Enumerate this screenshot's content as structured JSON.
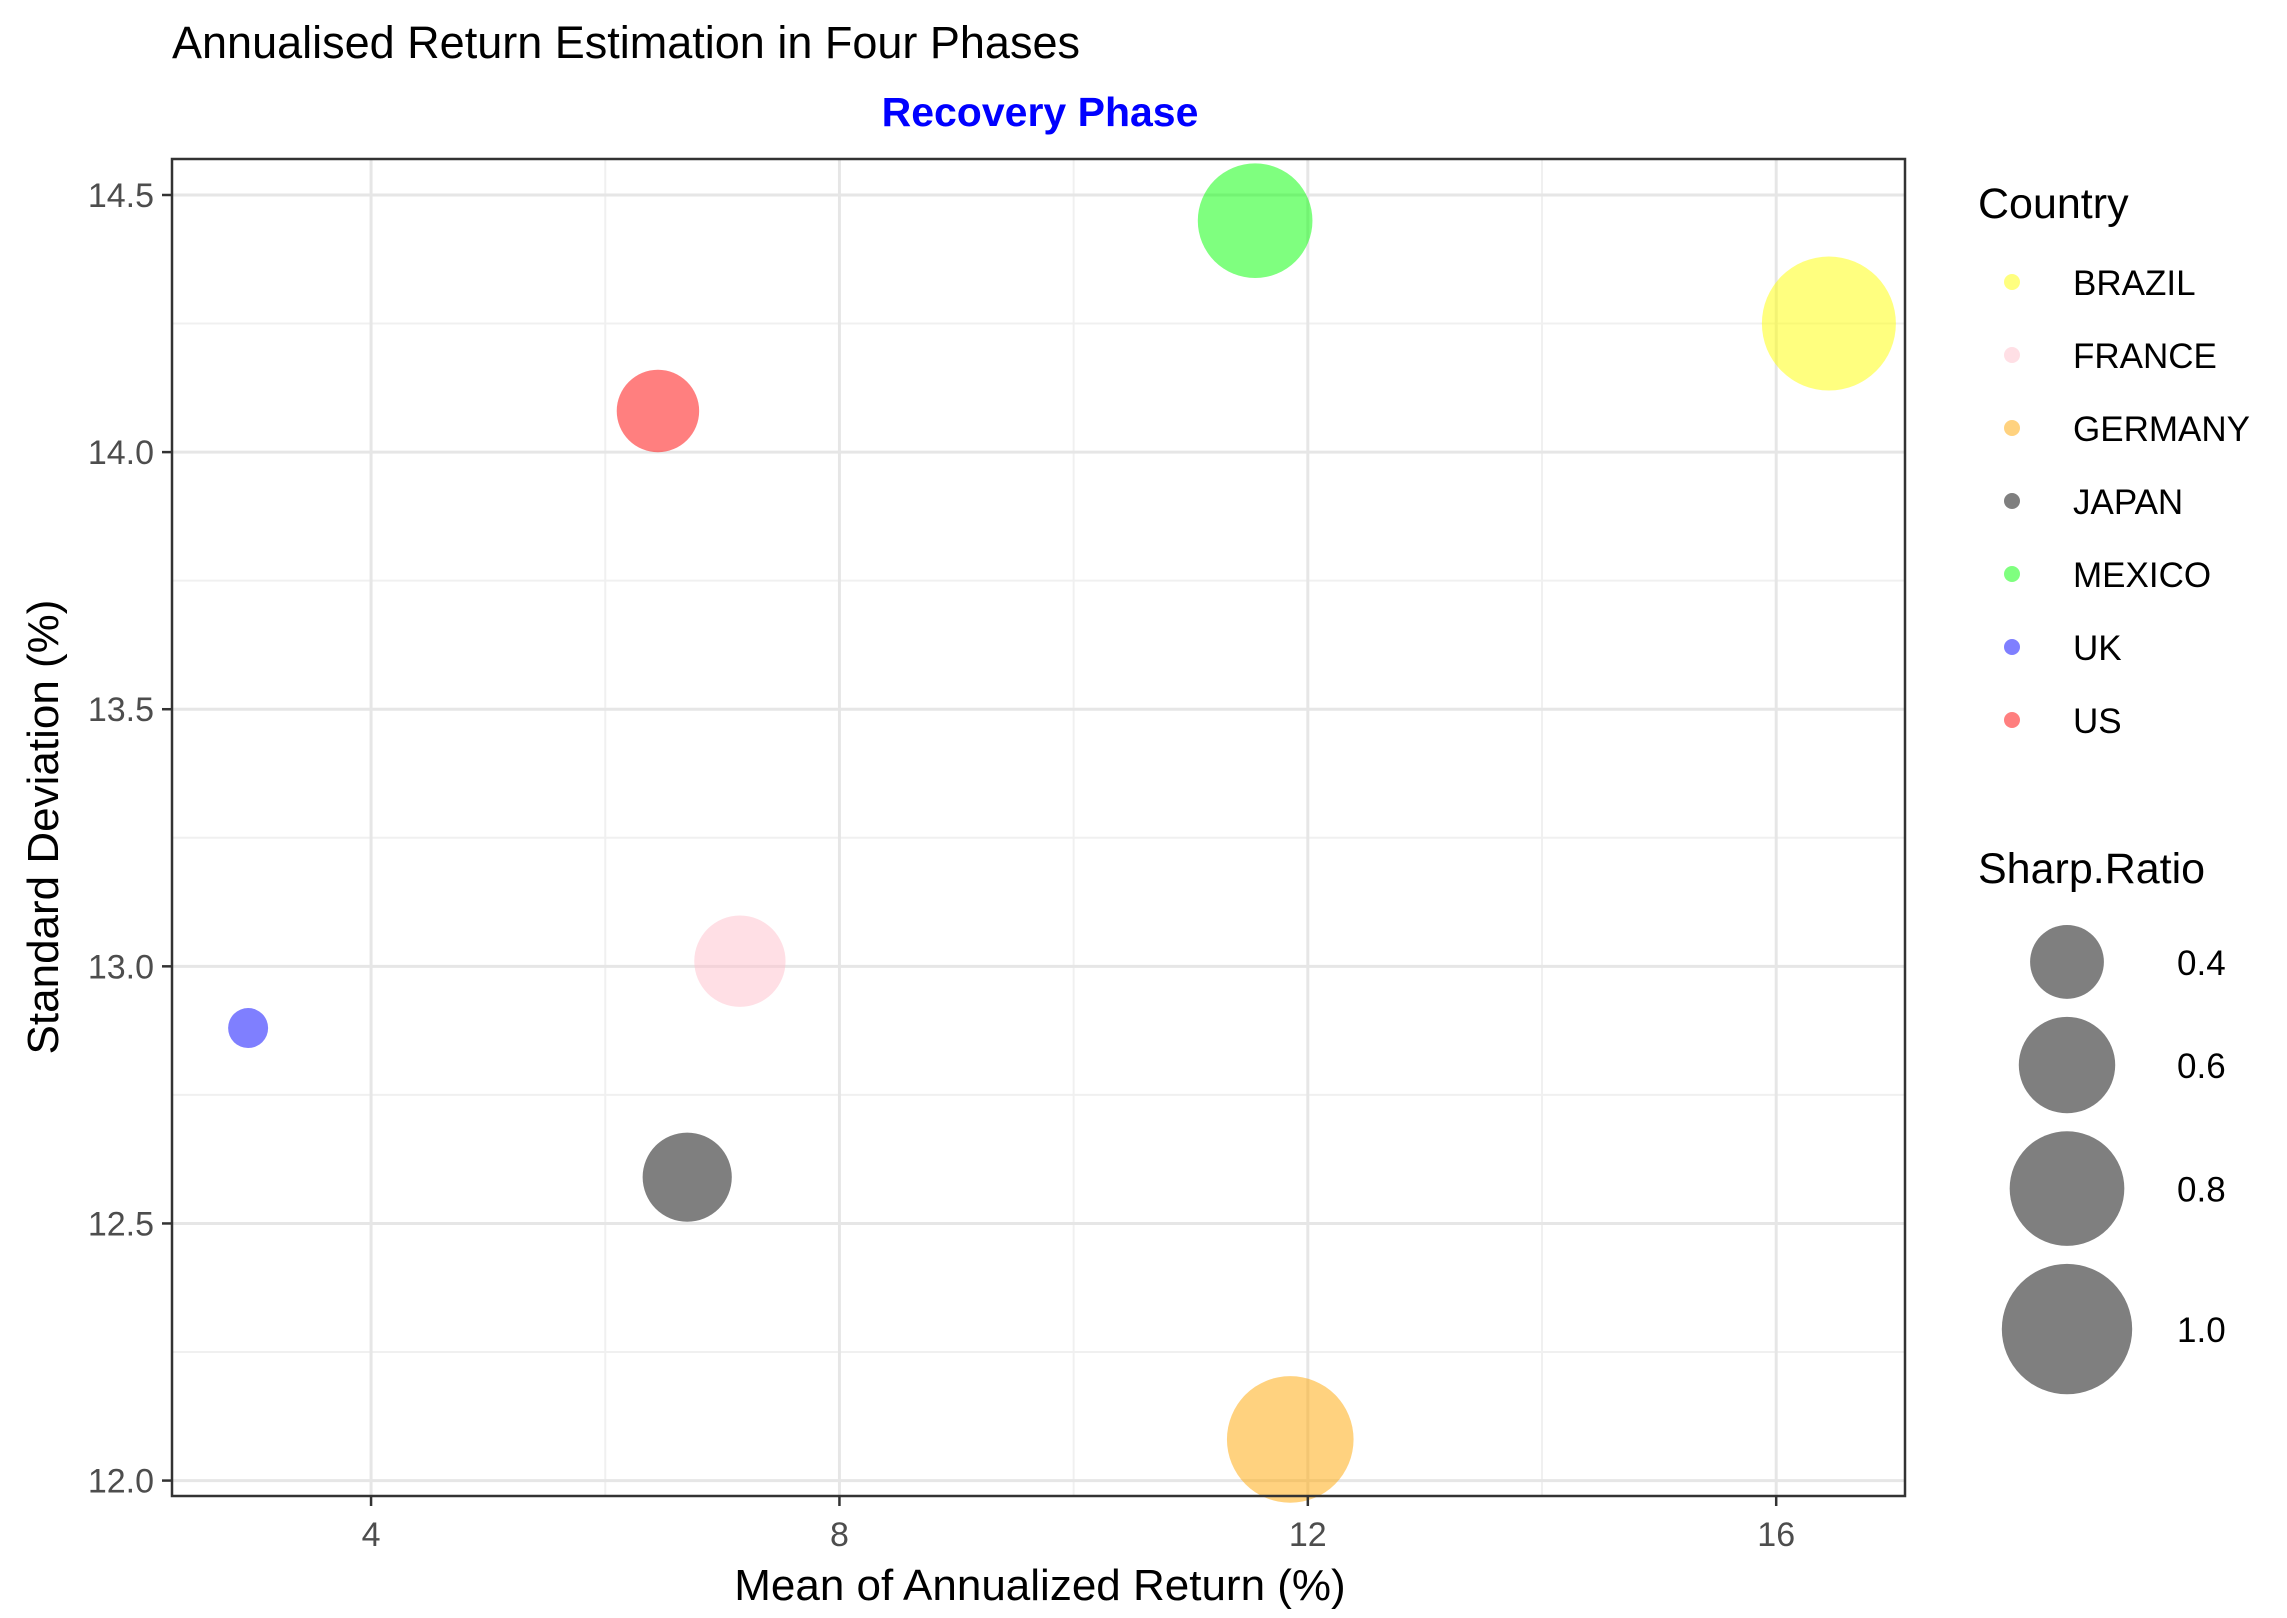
{
  "chart_data": {
    "type": "scatter",
    "title": "Annualised Return Estimation in Four Phases",
    "subtitle": "Recovery Phase",
    "subtitle_color": "#0000FF",
    "xlabel": "Mean of Annualized Return (%)",
    "ylabel": "Standard Deviation (%)",
    "xlim": [
      2.3,
      17.1
    ],
    "ylim": [
      11.97,
      14.57
    ],
    "x_ticks": [
      4,
      8,
      12,
      16
    ],
    "x_tick_labels": [
      "4",
      "8",
      "12",
      "16"
    ],
    "y_ticks": [
      12.0,
      12.5,
      13.0,
      13.5,
      14.0,
      14.5
    ],
    "y_tick_labels": [
      "12.0",
      "12.5",
      "13.0",
      "13.5",
      "14.0",
      "14.5"
    ],
    "grid": true,
    "legend_position": "right",
    "color_legend_title": "Country",
    "size_legend_title": "Sharp.Ratio",
    "size_legend_values": [
      0.4,
      0.6,
      0.8,
      1.0
    ],
    "size_legend_labels": [
      "0.4",
      "0.6",
      "0.8",
      "1.0"
    ],
    "size_range": [
      0.2,
      1.05
    ],
    "point_opacity": 0.5,
    "points": [
      {
        "country": "BRAZIL",
        "x": 16.45,
        "y": 14.25,
        "sharpe": 1.05,
        "color": "#FFFF00"
      },
      {
        "country": "FRANCE",
        "x": 7.15,
        "y": 13.01,
        "sharpe": 0.55,
        "color": "#FFC0CB"
      },
      {
        "country": "GERMANY",
        "x": 11.85,
        "y": 12.08,
        "sharpe": 0.95,
        "color": "#FFA500"
      },
      {
        "country": "JAPAN",
        "x": 6.7,
        "y": 12.59,
        "sharpe": 0.53,
        "color": "#000000"
      },
      {
        "country": "MEXICO",
        "x": 11.55,
        "y": 14.45,
        "sharpe": 0.8,
        "color": "#00FF00"
      },
      {
        "country": "UK",
        "x": 2.95,
        "y": 12.88,
        "sharpe": 0.2,
        "color": "#0000FF"
      },
      {
        "country": "US",
        "x": 6.45,
        "y": 14.08,
        "sharpe": 0.47,
        "color": "#FF0000"
      }
    ]
  }
}
